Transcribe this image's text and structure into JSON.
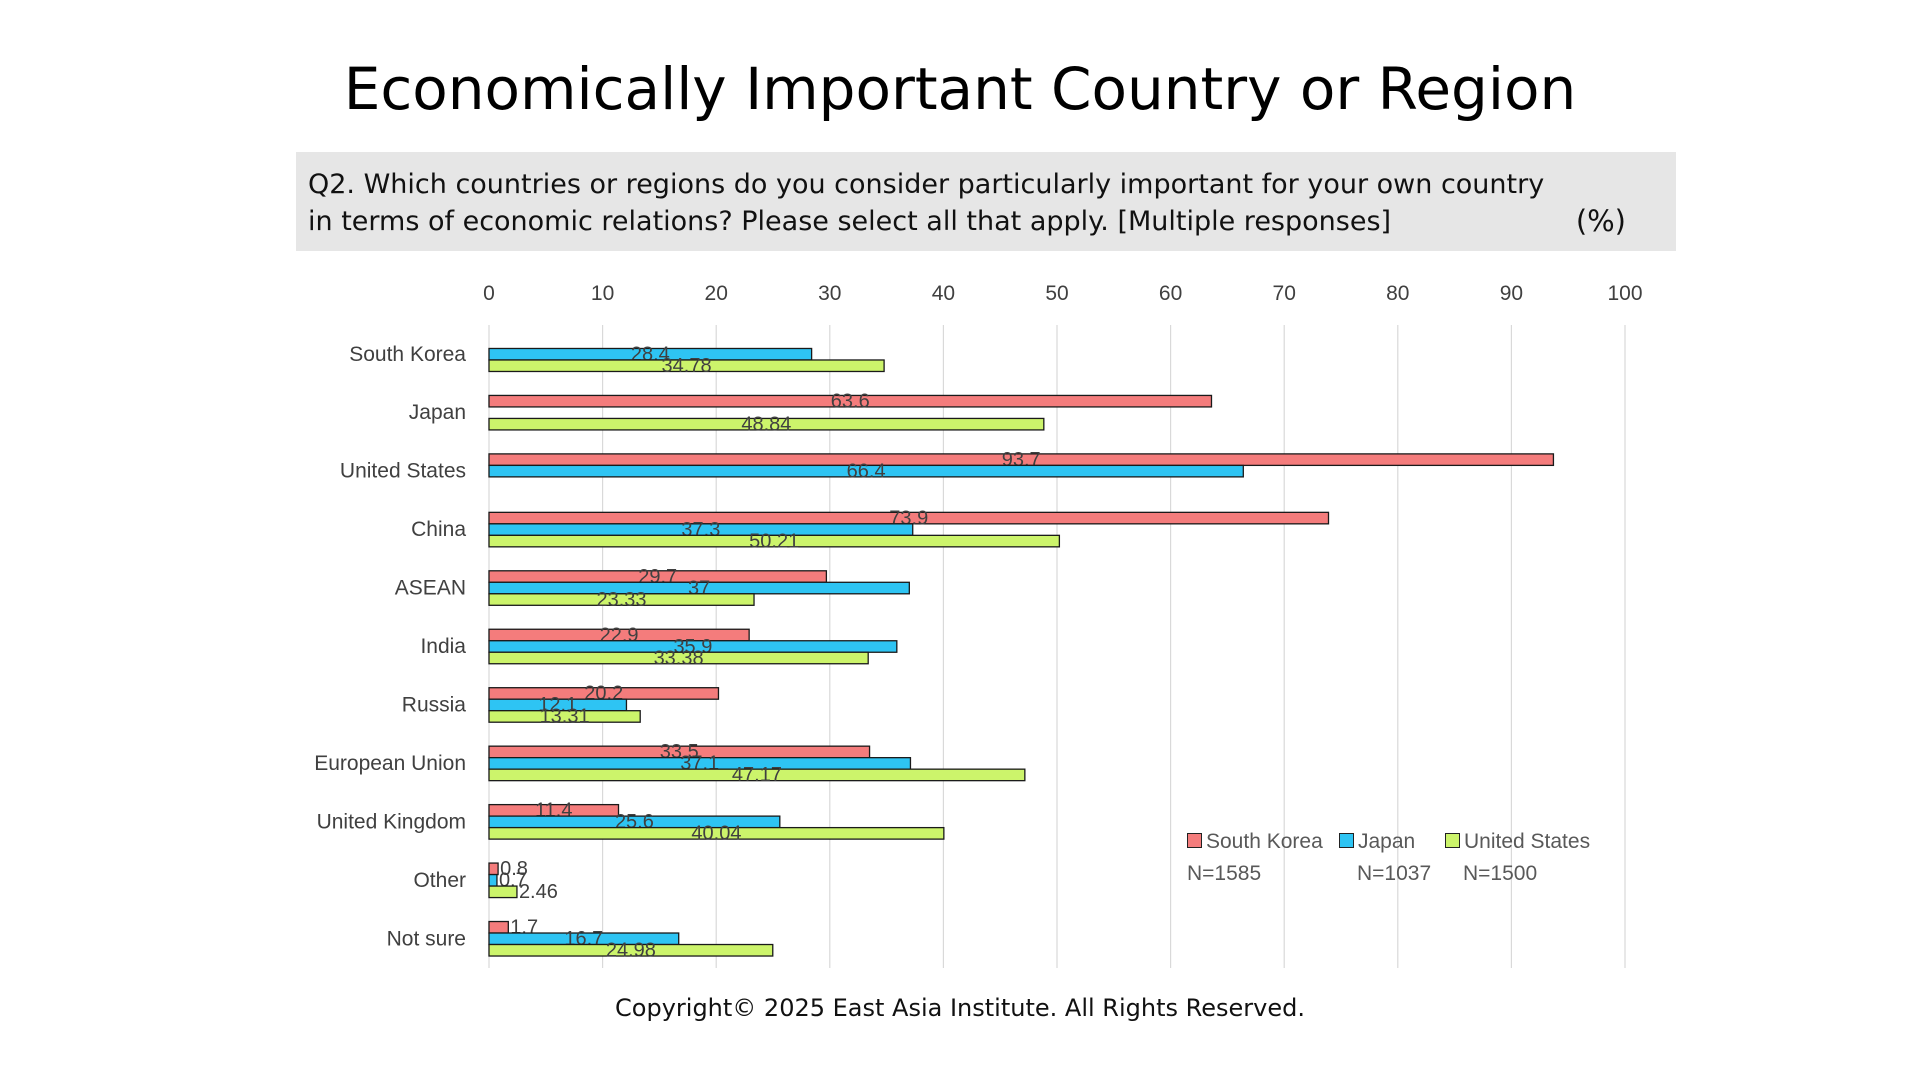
{
  "title": "Economically Important Country or Region",
  "question": "Q2. Which countries or regions do you consider particularly important for your own country in terms of economic relations? Please select all that apply. [Multiple responses]",
  "unit_label": "(%)",
  "footer": "Copyright© 2025 East Asia Institute. All Rights Reserved.",
  "colors": {
    "south_korea": "#f47c7c",
    "japan": "#2ec4f3",
    "united_states": "#ccf46b",
    "grid": "#d9d9d9",
    "label": "#404040"
  },
  "legend": [
    {
      "name": "South Korea",
      "n": "N=1585",
      "color": "#f47c7c"
    },
    {
      "name": "Japan",
      "n": "N=1037",
      "color": "#2ec4f3"
    },
    {
      "name": "United States",
      "n": "N=1500",
      "color": "#ccf46b"
    }
  ],
  "chart_data": {
    "type": "bar",
    "orientation": "horizontal",
    "xlim": [
      0,
      100
    ],
    "xticks": [
      "0",
      "10",
      "20",
      "30",
      "40",
      "50",
      "60",
      "70",
      "80",
      "90",
      "100"
    ],
    "grid": true,
    "legend_position": "bottom-right",
    "categories": [
      "South Korea",
      "Japan",
      "United States",
      "China",
      "ASEAN",
      "India",
      "Russia",
      "European Union",
      "United Kingdom",
      "Other",
      "Not sure"
    ],
    "series": [
      {
        "name": "South Korea",
        "values": [
          null,
          63.6,
          93.7,
          73.9,
          29.7,
          22.9,
          20.2,
          33.5,
          11.4,
          0.8,
          1.7
        ],
        "labels": [
          "",
          "63.6",
          "93.7",
          "73.9",
          "29.7",
          "22.9",
          "20.2",
          "33.5",
          "11.4",
          "0.8",
          "1.7"
        ]
      },
      {
        "name": "Japan",
        "values": [
          28.4,
          null,
          66.4,
          37.3,
          37,
          35.9,
          12.1,
          37.1,
          25.6,
          0.7,
          16.7
        ],
        "labels": [
          "28.4",
          "",
          "66.4",
          "37.3",
          "37",
          "35.9",
          "12.1",
          "37.1",
          "25.6",
          "0.7",
          "16.7"
        ]
      },
      {
        "name": "United States",
        "values": [
          34.78,
          48.84,
          null,
          50.21,
          23.33,
          33.38,
          13.31,
          47.17,
          40.04,
          2.46,
          24.98
        ],
        "labels": [
          "34.78",
          "48.84",
          "",
          "50.21",
          "23.33",
          "33.38",
          "13.31",
          "47.17",
          "40.04",
          "2.46",
          "24.98"
        ]
      }
    ]
  }
}
